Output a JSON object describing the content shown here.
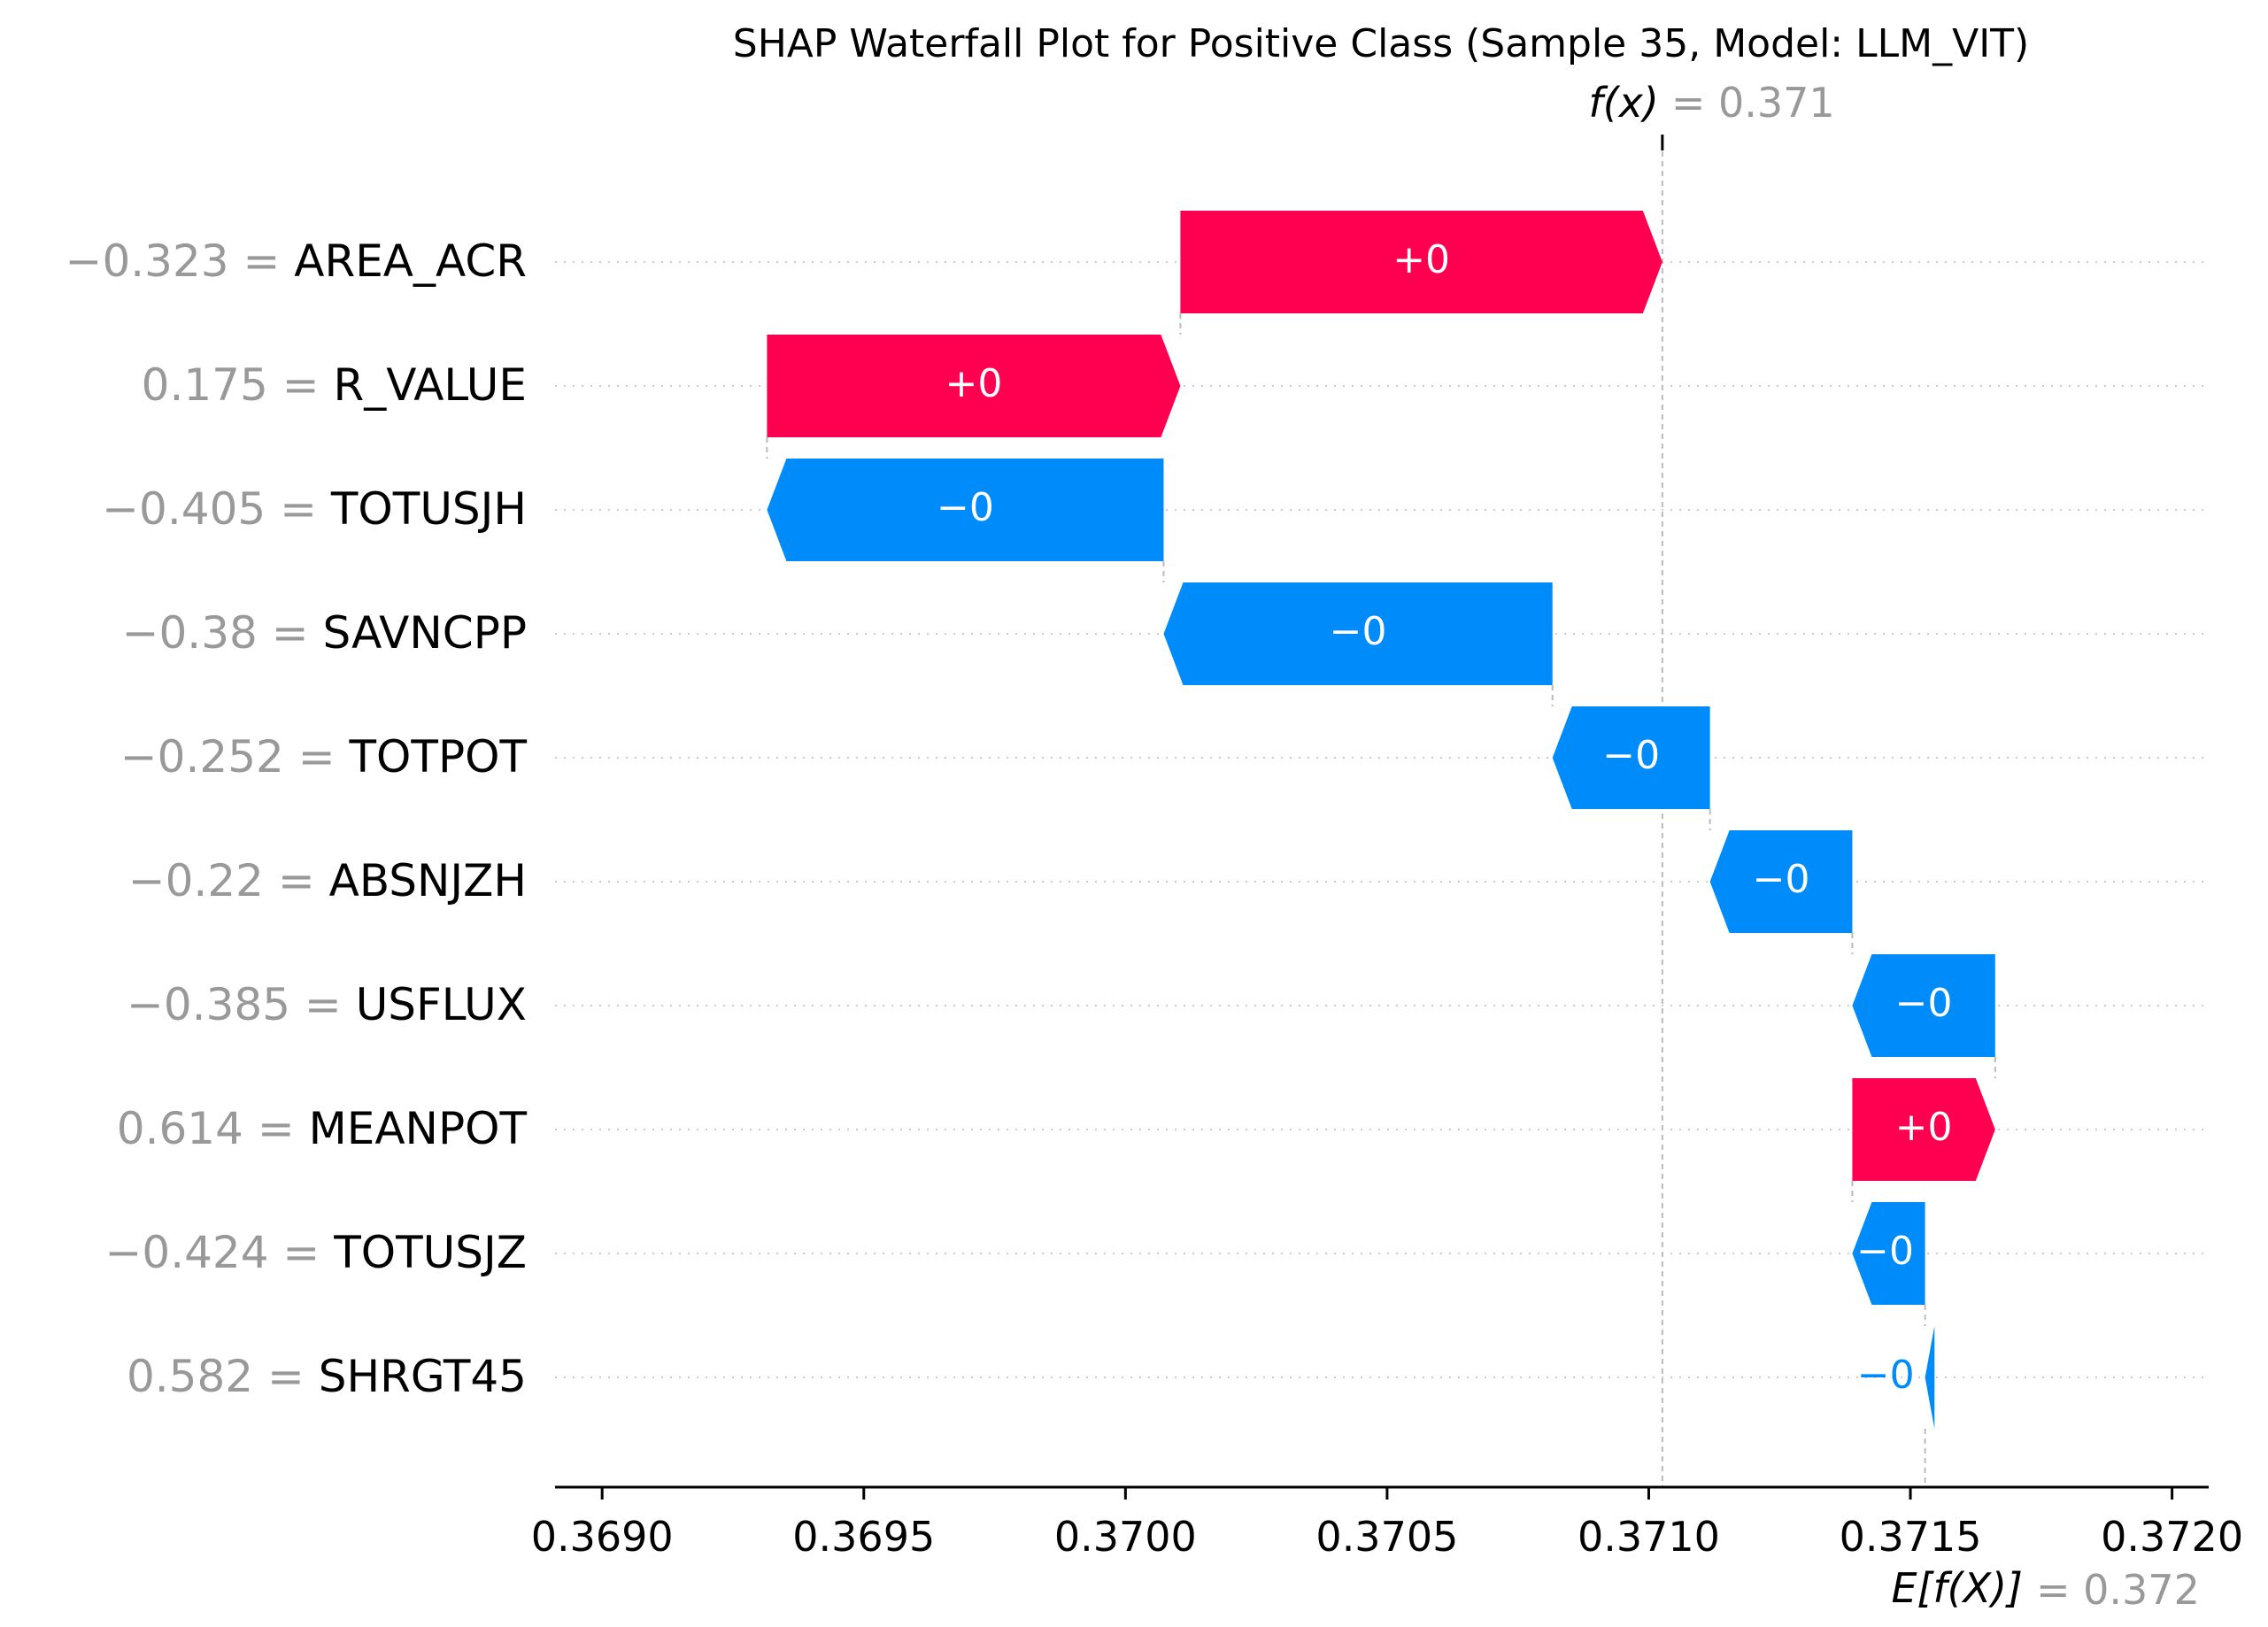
{
  "chart_data": {
    "type": "waterfall",
    "title": "SHAP Waterfall Plot for Positive Class (Sample 35, Model: LLM_VIT)",
    "fx_label": "f(x)",
    "fx_value": "= 0.371",
    "fx": 0.371026,
    "efx_label": "E[f(X)]",
    "efx_value": "= 0.372",
    "base_value": 0.371528,
    "x_ticks": [
      "0.3690",
      "0.3695",
      "0.3700",
      "0.3705",
      "0.3710",
      "0.3715",
      "0.3720"
    ],
    "x_tick_values": [
      0.369,
      0.3695,
      0.37,
      0.3705,
      0.371,
      0.3715,
      0.372
    ],
    "xlim": [
      0.36891,
      0.37207
    ],
    "features": [
      {
        "value_text": "−0.323 =",
        "name": "AREA_ACR",
        "start": 0.370105,
        "end": 0.371026,
        "label": "+0"
      },
      {
        "value_text": "0.175 =",
        "name": "R_VALUE",
        "start": 0.369315,
        "end": 0.370105,
        "label": "+0"
      },
      {
        "value_text": "−0.405 =",
        "name": "TOTUSJH",
        "start": 0.370073,
        "end": 0.369315,
        "label": "−0"
      },
      {
        "value_text": "−0.38 =",
        "name": "SAVNCPP",
        "start": 0.370816,
        "end": 0.370073,
        "label": "−0"
      },
      {
        "value_text": "−0.252 =",
        "name": "TOTPOT",
        "start": 0.371117,
        "end": 0.370816,
        "label": "−0"
      },
      {
        "value_text": "−0.22 =",
        "name": "ABSNJZH",
        "start": 0.371389,
        "end": 0.371117,
        "label": "−0"
      },
      {
        "value_text": "−0.385 =",
        "name": "USFLUX",
        "start": 0.371662,
        "end": 0.371389,
        "label": "−0"
      },
      {
        "value_text": "0.614 =",
        "name": "MEANPOT",
        "start": 0.371389,
        "end": 0.371662,
        "label": "+0"
      },
      {
        "value_text": "−0.424 =",
        "name": "TOTUSJZ",
        "start": 0.371528,
        "end": 0.371389,
        "label": "−0"
      },
      {
        "value_text": "0.582 =",
        "name": "SHRGT45",
        "start": 0.371546,
        "end": 0.371528,
        "label": "−0"
      }
    ],
    "colors": {
      "positive": "#ff0051",
      "negative": "#008bfb",
      "muted": "#999999",
      "text": "#000000"
    }
  }
}
